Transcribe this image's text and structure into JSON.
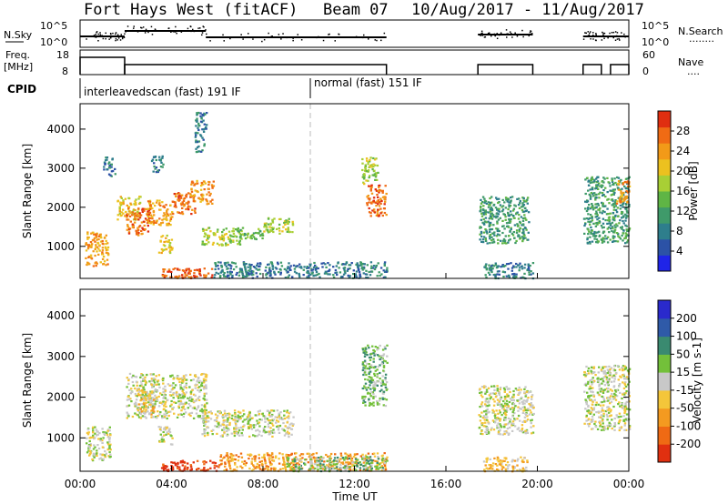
{
  "header": {
    "title": "Fort Hays West (fitACF)",
    "beam": "Beam 07",
    "date_range": "10/Aug/2017 - 11/Aug/2017"
  },
  "side_labels": {
    "nsky": "N.Sky",
    "freq": "Freq.",
    "mhz": "[MHz]",
    "cpid": "CPID",
    "nsearch": "N.Search",
    "nsearch_style": "........",
    "nave": "Nave",
    "nave_style": "...."
  },
  "scales": {
    "noise_top": "10^5",
    "noise_bottom": "10^0",
    "freq_top": "18",
    "freq_bottom": "8",
    "nave_top": "60",
    "nave_bottom": "0"
  },
  "modes": [
    {
      "label": "interleavedscan (fast) 191 IF",
      "start_hour": 0
    },
    {
      "label": "normal (fast) 151 IF",
      "start_hour": 10
    }
  ],
  "x_axis": {
    "label": "Time UT",
    "ticks": [
      "00:00",
      "04:00",
      "08:00",
      "12:00",
      "16:00",
      "20:00",
      "00:00"
    ]
  },
  "y_axis": {
    "label": "Slant Range [km]",
    "ticks": [
      "1000",
      "2000",
      "3000",
      "4000"
    ]
  },
  "power_bar": {
    "label": "Power [dB]",
    "ticks": [
      "4",
      "8",
      "12",
      "16",
      "20",
      "24",
      "28"
    ],
    "colors": [
      "#1f24e8",
      "#2c52a6",
      "#2e7e8c",
      "#3f9a6a",
      "#5fb545",
      "#a8cf35",
      "#ecc11f",
      "#f29a18",
      "#f06b14",
      "#e02e10"
    ]
  },
  "velocity_bar": {
    "label": "Velocity [m s-1]",
    "ticks": [
      "200",
      "100",
      "50",
      "15",
      "-15",
      "-50",
      "-100",
      "-200"
    ],
    "colors": [
      "#2a2acc",
      "#2f5aa8",
      "#3a8a70",
      "#73c03a",
      "#c8c8c8",
      "#f4c63a",
      "#f49a20",
      "#ef6a14",
      "#e03010"
    ]
  },
  "chart_data": {
    "type": "heatmap",
    "x_unit": "hours UT",
    "xlim": [
      0,
      24
    ],
    "ylim": [
      180,
      4650
    ],
    "panels": [
      {
        "name": "power",
        "blobs": [
          {
            "t0": 0.2,
            "t1": 1.2,
            "r0": 500,
            "r1": 1400,
            "c": 7
          },
          {
            "t0": 1.0,
            "t1": 1.5,
            "r0": 2800,
            "r1": 3300,
            "c": 2
          },
          {
            "t0": 1.6,
            "t1": 2.6,
            "r0": 1700,
            "r1": 2300,
            "c": 6
          },
          {
            "t0": 2.0,
            "t1": 3.0,
            "r0": 1300,
            "r1": 2000,
            "c": 8
          },
          {
            "t0": 2.9,
            "t1": 4.0,
            "r0": 1550,
            "r1": 2200,
            "c": 7
          },
          {
            "t0": 4.0,
            "t1": 5.0,
            "r0": 1850,
            "r1": 2400,
            "c": 8
          },
          {
            "t0": 4.8,
            "t1": 5.8,
            "r0": 2100,
            "r1": 2700,
            "c": 7
          },
          {
            "t0": 3.1,
            "t1": 3.6,
            "r0": 2900,
            "r1": 3350,
            "c": 2
          },
          {
            "t0": 5.0,
            "t1": 5.5,
            "r0": 3400,
            "r1": 4450,
            "c": 2
          },
          {
            "t0": 3.4,
            "t1": 4.0,
            "r0": 850,
            "r1": 1300,
            "c": 6
          },
          {
            "t0": 5.3,
            "t1": 7.0,
            "r0": 1050,
            "r1": 1500,
            "c": 5
          },
          {
            "t0": 6.8,
            "t1": 8.0,
            "r0": 1200,
            "r1": 1500,
            "c": 4
          },
          {
            "t0": 8.0,
            "t1": 9.3,
            "r0": 1350,
            "r1": 1750,
            "c": 5
          },
          {
            "t0": 3.5,
            "t1": 5.8,
            "r0": 200,
            "r1": 470,
            "c": 8
          },
          {
            "t0": 5.8,
            "t1": 13.4,
            "r0": 210,
            "r1": 620,
            "c": 2
          },
          {
            "t0": 12.5,
            "t1": 13.4,
            "r0": 1800,
            "r1": 2600,
            "c": 8
          },
          {
            "t0": 12.3,
            "t1": 13.0,
            "r0": 2600,
            "r1": 3300,
            "c": 5
          },
          {
            "t0": 17.4,
            "t1": 19.6,
            "r0": 1100,
            "r1": 2300,
            "c": 3
          },
          {
            "t0": 17.6,
            "t1": 19.8,
            "r0": 200,
            "r1": 600,
            "c": 2
          },
          {
            "t0": 22.0,
            "t1": 24.0,
            "r0": 1100,
            "r1": 2800,
            "c": 3
          },
          {
            "t0": 23.4,
            "t1": 24.0,
            "r0": 2100,
            "r1": 2700,
            "c": 7
          }
        ]
      },
      {
        "name": "velocity",
        "blobs": [
          {
            "t0": 0.2,
            "t1": 1.3,
            "r0": 450,
            "r1": 1300,
            "c": 4
          },
          {
            "t0": 2.0,
            "t1": 5.5,
            "r0": 1500,
            "r1": 2600,
            "c": 4
          },
          {
            "t0": 3.4,
            "t1": 4.0,
            "r0": 850,
            "r1": 1300,
            "c": 4
          },
          {
            "t0": 2.5,
            "t1": 3.2,
            "r0": 1600,
            "r1": 2200,
            "c": 5
          },
          {
            "t0": 5.3,
            "t1": 9.3,
            "r0": 1050,
            "r1": 1700,
            "c": 4
          },
          {
            "t0": 3.5,
            "t1": 6.0,
            "r0": 200,
            "r1": 460,
            "c": 8
          },
          {
            "t0": 6.0,
            "t1": 13.4,
            "r0": 210,
            "r1": 650,
            "c": 6
          },
          {
            "t0": 9.0,
            "t1": 13.4,
            "r0": 200,
            "r1": 560,
            "c": 3
          },
          {
            "t0": 12.3,
            "t1": 13.4,
            "r0": 1800,
            "r1": 3300,
            "c": 3
          },
          {
            "t0": 17.4,
            "t1": 19.8,
            "r0": 1100,
            "r1": 2300,
            "c": 4
          },
          {
            "t0": 17.6,
            "t1": 19.6,
            "r0": 200,
            "r1": 550,
            "c": 5
          },
          {
            "t0": 22.0,
            "t1": 24.0,
            "r0": 1200,
            "r1": 2800,
            "c": 4
          }
        ]
      }
    ]
  }
}
